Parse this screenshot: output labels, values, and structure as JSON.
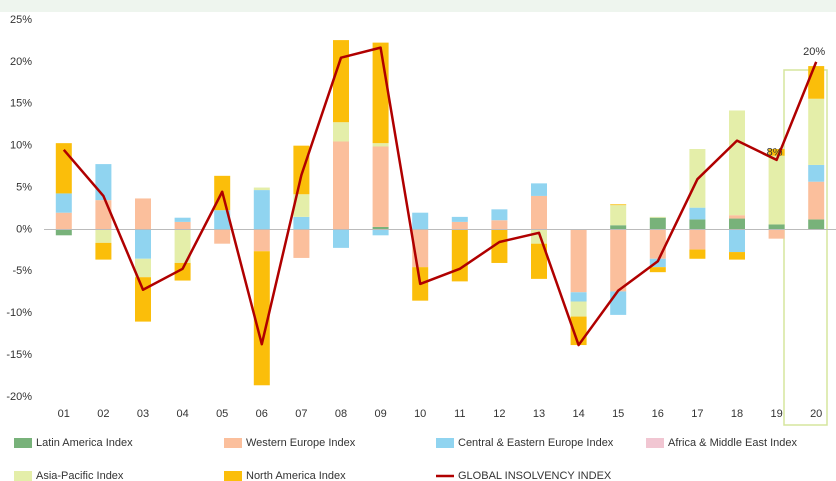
{
  "chart_data": {
    "type": "bar",
    "categories": [
      "01",
      "02",
      "03",
      "04",
      "05",
      "06",
      "07",
      "08",
      "09",
      "10",
      "11",
      "12",
      "13",
      "14",
      "15",
      "16",
      "17",
      "18",
      "19",
      "20"
    ],
    "series": [
      {
        "name": "Latin America Index",
        "color": "#78b27a",
        "values": [
          -0.7,
          0,
          0,
          0,
          0,
          0,
          0,
          0,
          0.3,
          0,
          0,
          0,
          0,
          0,
          0.5,
          1.4,
          1.2,
          1.3,
          0.6,
          1.2
        ]
      },
      {
        "name": "Western Europe Index",
        "color": "#fbbf9c",
        "values": [
          2,
          3.5,
          3.7,
          0.9,
          -1.7,
          -2.6,
          -3.4,
          10.5,
          9.6,
          -4.5,
          0.9,
          1.1,
          4,
          -7.5,
          -7.4,
          -3.5,
          -2.4,
          0.4,
          -1.1,
          4.5
        ]
      },
      {
        "name": "Central & Eastern Europe Index",
        "color": "#90d4f0",
        "values": [
          2.3,
          4.3,
          -3.5,
          0.5,
          2.3,
          4.7,
          1.5,
          -2.2,
          -0.7,
          2,
          0.6,
          1.3,
          1.5,
          -1.1,
          -2.8,
          -1,
          1.4,
          -2.7,
          0,
          2
        ]
      },
      {
        "name": "Africa & Middle East Index",
        "color": "#f1c6d2",
        "values": [
          0,
          0,
          0,
          0,
          0,
          0,
          0,
          0,
          0,
          0,
          0,
          0,
          0,
          0,
          0,
          0,
          0,
          0,
          0,
          0
        ]
      },
      {
        "name": "Asia-Pacific Index",
        "color": "#e4eea9",
        "values": [
          0,
          -1.6,
          -2.2,
          -4,
          0,
          0.3,
          2.7,
          2.3,
          0.4,
          0,
          0,
          0,
          -1.7,
          -1.8,
          2.4,
          0.1,
          7,
          12.5,
          8.2,
          7.9
        ]
      },
      {
        "name": "North America Index",
        "color": "#fbbe0a",
        "values": [
          6,
          -2,
          -5.3,
          -2.1,
          4.1,
          -16,
          5.8,
          9.8,
          12,
          -4,
          -6.2,
          -4,
          -4.2,
          -3.4,
          0.1,
          -0.6,
          -1.1,
          -0.9,
          0.8,
          3.9
        ]
      },
      {
        "name": "GLOBAL INSOLVENCY INDEX",
        "color": "#b00000",
        "type": "line",
        "values": [
          9.5,
          4,
          -7.2,
          -4.7,
          4.5,
          -13.7,
          6.5,
          20.5,
          21.7,
          -6.5,
          -4.7,
          -1.5,
          -0.4,
          -13.8,
          -7.3,
          -3.8,
          6,
          10.6,
          8.3,
          20
        ]
      }
    ],
    "ylim": [
      -20,
      25
    ],
    "yticks": [
      {
        "value": -20,
        "label": "-20%"
      },
      {
        "value": -15,
        "label": "-15%"
      },
      {
        "value": -10,
        "label": "-10%"
      },
      {
        "value": -5,
        "label": "-5%"
      },
      {
        "value": 0,
        "label": "0%"
      },
      {
        "value": 5,
        "label": "5%"
      },
      {
        "value": 10,
        "label": "10%"
      },
      {
        "value": 15,
        "label": "15%"
      },
      {
        "value": 20,
        "label": "20%"
      },
      {
        "value": 25,
        "label": "25%"
      }
    ],
    "grid": false,
    "annotations": [
      {
        "text": "8%",
        "category": "19",
        "value": 8
      },
      {
        "text": "20%",
        "category": "20",
        "value": 20
      }
    ]
  }
}
